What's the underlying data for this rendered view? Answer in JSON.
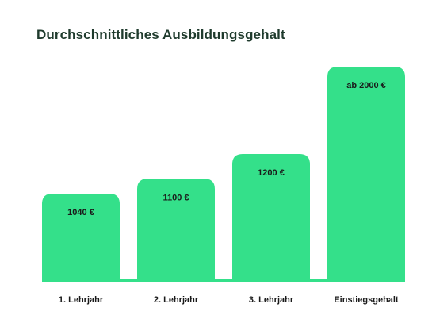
{
  "chart_data": {
    "type": "bar",
    "title": "Durchschnittliches Ausbildungsgehalt",
    "categories": [
      "1. Lehrjahr",
      "2. Lehrjahr",
      "3. Lehrjahr",
      "Einstiegsgehalt"
    ],
    "values": [
      1040,
      1100,
      1200,
      2000
    ],
    "data_labels": [
      "1040 €",
      "1100 €",
      "1200 €",
      "ab 2000 €"
    ],
    "xlabel": "",
    "ylabel": "",
    "ylim": [
      0,
      2000
    ],
    "grid": false,
    "legend": "none",
    "colors": {
      "bar": "#34e08a",
      "title": "#1f3b2d",
      "text": "#1a1a1a"
    }
  }
}
